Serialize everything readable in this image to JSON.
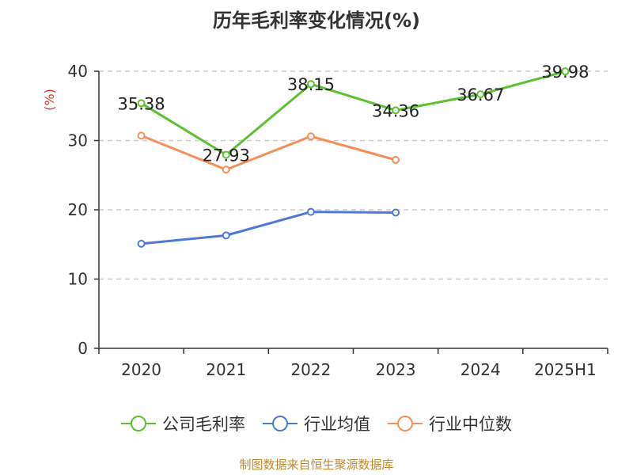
{
  "title": "历年毛利率变化情况(%)",
  "source": "制图数据来自恒生聚源数据库",
  "chart_data": {
    "type": "line",
    "title": "历年毛利率变化情况(%)",
    "ylabel": "(%)",
    "xlabel": "",
    "categories": [
      "2020",
      "2021",
      "2022",
      "2023",
      "2024",
      "2025H1"
    ],
    "ylim": [
      0,
      40
    ],
    "yticks": [
      0,
      10,
      20,
      30,
      40
    ],
    "grid": true,
    "legend_position": "bottom",
    "series": [
      {
        "name": "公司毛利率",
        "color": "#5cc12f",
        "values": [
          35.38,
          27.93,
          38.15,
          34.36,
          36.67,
          39.98
        ],
        "labels": [
          "35.38",
          "27.93",
          "38.15",
          "34.36",
          "36.67",
          "39.98"
        ]
      },
      {
        "name": "行业均值",
        "color": "#4e7ad6",
        "values": [
          15.1,
          16.3,
          19.7,
          19.6,
          null,
          null
        ]
      },
      {
        "name": "行业中位数",
        "color": "#f58f5a",
        "values": [
          30.7,
          25.8,
          30.6,
          27.2,
          null,
          null
        ]
      }
    ]
  }
}
